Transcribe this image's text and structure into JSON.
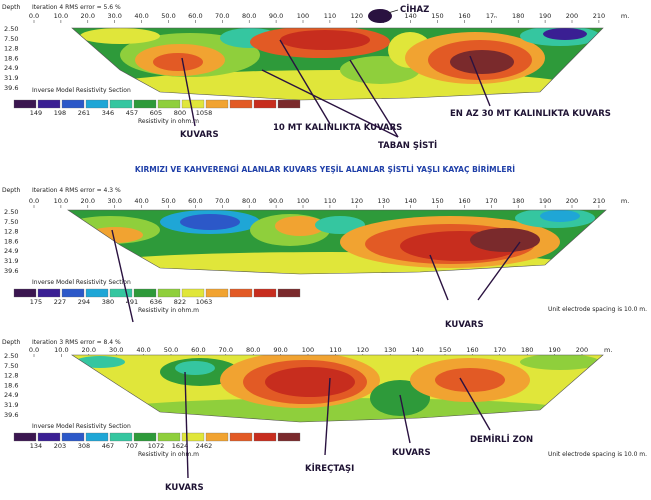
{
  "palette": [
    "#3b1650",
    "#3a1f93",
    "#2c58c8",
    "#1fa6d6",
    "#35c6a0",
    "#2e9a3a",
    "#8fcf3c",
    "#e0e63a",
    "#f1a331",
    "#e25a25",
    "#c72d1e",
    "#7a2a2c"
  ],
  "panels": [
    {
      "iteration": "Iteration 4 RMS error = 5.6 %",
      "depth_label": "Depth",
      "depths": [
        "2.50",
        "7.50",
        "12.8",
        "18.6",
        "24.9",
        "31.9",
        "39.6"
      ],
      "x_ticks": [
        "0.0",
        "10.0",
        "20.0",
        "30.0",
        "40.0",
        "50.0",
        "60.0",
        "70.0",
        "80.0",
        "90.0",
        "100",
        "110",
        "120",
        "130",
        "140",
        "150",
        "160",
        "17ₙ",
        "180",
        "190",
        "200",
        "210"
      ],
      "x_unit": "m.",
      "section_title": "Inverse Model Resistivity Section",
      "scale_values": [
        "149",
        "198",
        "261",
        "346",
        "457",
        "605",
        "800",
        "1058"
      ],
      "scale_unit": "Resistivity in ohm.m",
      "spacing": ""
    },
    {
      "iteration": "Iteration 4 RMS error = 4.3 %",
      "depth_label": "Depth",
      "depths": [
        "2.50",
        "7.50",
        "12.8",
        "18.6",
        "24.9",
        "31.9",
        "39.6"
      ],
      "x_ticks": [
        "0.0",
        "10.0",
        "20.0",
        "30.0",
        "40.0",
        "50.0",
        "60.0",
        "70.0",
        "80.0",
        "90.0",
        "100",
        "110",
        "120",
        "130",
        "140",
        "150",
        "160",
        "170",
        "180",
        "190",
        "200",
        "210"
      ],
      "x_unit": "m.",
      "section_title": "Inverse Model Resistivity Section",
      "scale_values": [
        "175",
        "227",
        "294",
        "380",
        "491",
        "636",
        "822",
        "1063"
      ],
      "scale_unit": "Resistivity in ohm.m",
      "spacing": "Unit electrode spacing is 10.0 m."
    },
    {
      "iteration": "Iteration 3 RMS error = 8.4 %",
      "depth_label": "Depth",
      "depths": [
        "2.50",
        "7.50",
        "12.8",
        "18.6",
        "24.9",
        "31.9",
        "39.6"
      ],
      "x_ticks": [
        "0.0",
        "10.0",
        "20.0",
        "30.0",
        "40.0",
        "50.0",
        "60.0",
        "70.0",
        "80.0",
        "90.0",
        "100",
        "110",
        "120",
        "130",
        "140",
        "150",
        "160",
        "170",
        "180",
        "190",
        "200"
      ],
      "x_unit": "m.",
      "section_title": "Inverse Model Resistivity Section",
      "scale_values": [
        "134",
        "203",
        "308",
        "467",
        "707",
        "1072",
        "1624",
        "2462"
      ],
      "scale_unit": "Resistivity in ohm.m",
      "spacing": "Unit electrode spacing is 10.0 m."
    }
  ],
  "annotations": {
    "cihaz": "CİHAZ",
    "kuvars_1": "KUVARS",
    "mt10": "10 MT KALINLIKTA KUVARS",
    "taban": "TABAN ŞİSTİ",
    "mt30": "EN AZ 30 MT KALINLIKTA KUVARS",
    "caption": "KIRMIZI VE KAHVERENGİ ALANLAR KUVARS YEŞİL ALANLAR ŞİSTLİ YAŞLI KAYAÇ BİRİMLERİ",
    "kuvars_2": "KUVARS",
    "kirectasi": "KİREÇTAŞI",
    "kuvars_3": "KUVARS",
    "kuvars_4": "KUVARS",
    "demirli": "DEMİRLİ ZON"
  }
}
